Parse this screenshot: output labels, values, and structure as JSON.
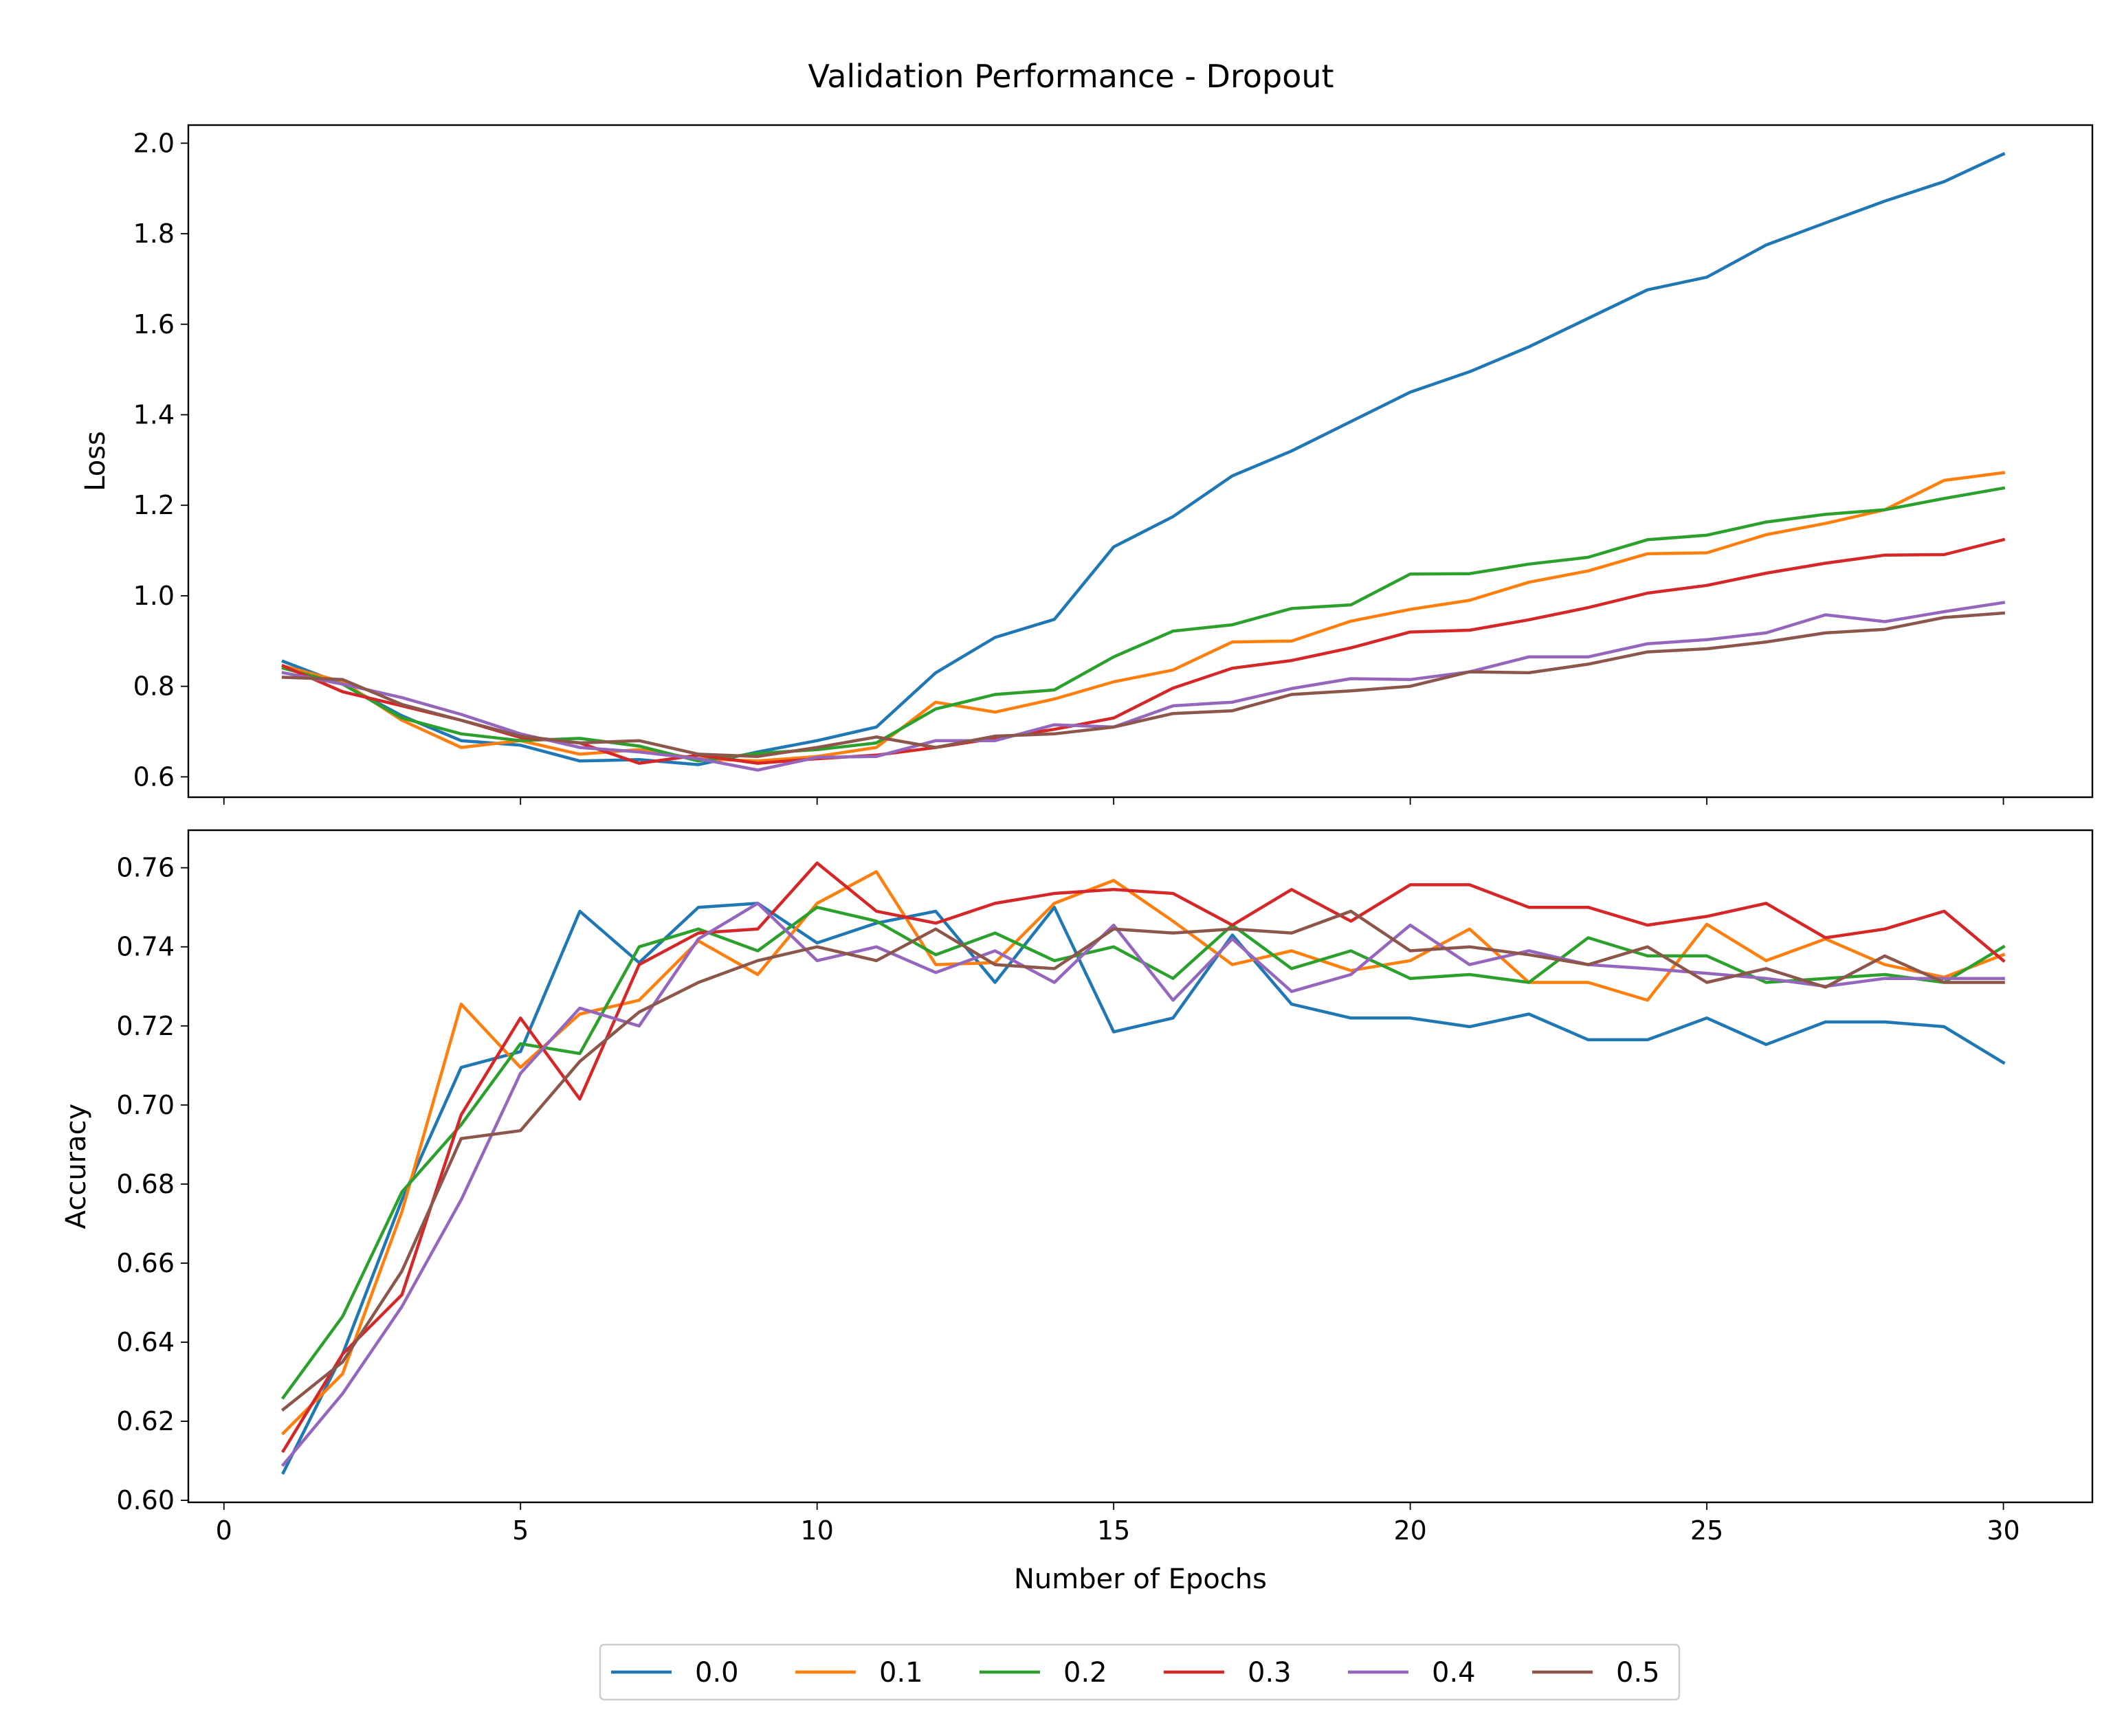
{
  "figure_title": "Validation Performance - Dropout",
  "chart_data": [
    {
      "type": "line",
      "ylabel": "Loss",
      "xlabel": "",
      "xlim": [
        -0.6,
        31.5
      ],
      "ylim": [
        0.555,
        2.04
      ],
      "xticks": [
        0,
        5,
        10,
        15,
        20,
        25,
        30
      ],
      "show_xtick_labels": false,
      "yticks": [
        0.6,
        0.8,
        1.0,
        1.2,
        1.4,
        1.6,
        1.8,
        2.0
      ],
      "ytick_labels": [
        "0.6",
        "0.8",
        "1.0",
        "1.2",
        "1.4",
        "1.6",
        "1.8",
        "2.0"
      ],
      "x": [
        1,
        2,
        3,
        4,
        5,
        6,
        7,
        8,
        9,
        10,
        11,
        12,
        13,
        14,
        15,
        16,
        17,
        18,
        19,
        20,
        21,
        22,
        23,
        24,
        25,
        26,
        27,
        28,
        29,
        30
      ],
      "series": [
        {
          "name": "0.0",
          "color": "#1f77b4",
          "values": [
            0.855,
            0.805,
            0.735,
            0.68,
            0.67,
            0.635,
            0.638,
            0.627,
            0.655,
            0.68,
            0.71,
            0.83,
            0.908,
            0.948,
            1.108,
            1.175,
            1.265,
            1.32,
            1.385,
            1.45,
            1.495,
            1.55,
            1.613,
            1.676,
            1.704,
            1.775,
            1.824,
            1.872,
            1.915,
            1.976
          ]
        },
        {
          "name": "0.1",
          "color": "#ff7f0e",
          "values": [
            0.845,
            0.81,
            0.725,
            0.665,
            0.68,
            0.65,
            0.66,
            0.64,
            0.635,
            0.645,
            0.665,
            0.765,
            0.743,
            0.772,
            0.81,
            0.836,
            0.898,
            0.9,
            0.944,
            0.97,
            0.99,
            1.03,
            1.055,
            1.093,
            1.095,
            1.135,
            1.16,
            1.19,
            1.255,
            1.272
          ]
        },
        {
          "name": "0.2",
          "color": "#2ca02c",
          "values": [
            0.84,
            0.805,
            0.73,
            0.695,
            0.68,
            0.685,
            0.668,
            0.635,
            0.652,
            0.66,
            0.675,
            0.75,
            0.782,
            0.792,
            0.865,
            0.922,
            0.936,
            0.972,
            0.98,
            1.048,
            1.049,
            1.07,
            1.085,
            1.124,
            1.134,
            1.163,
            1.18,
            1.19,
            1.215,
            1.238
          ]
        },
        {
          "name": "0.3",
          "color": "#d62728",
          "values": [
            0.845,
            0.788,
            0.757,
            0.725,
            0.687,
            0.675,
            0.63,
            0.648,
            0.63,
            0.64,
            0.648,
            0.665,
            0.685,
            0.705,
            0.73,
            0.796,
            0.84,
            0.857,
            0.885,
            0.92,
            0.924,
            0.947,
            0.974,
            1.006,
            1.023,
            1.05,
            1.072,
            1.09,
            1.091,
            1.124
          ]
        },
        {
          "name": "0.4",
          "color": "#9467bd",
          "values": [
            0.83,
            0.805,
            0.775,
            0.738,
            0.695,
            0.665,
            0.655,
            0.64,
            0.615,
            0.643,
            0.645,
            0.68,
            0.68,
            0.715,
            0.71,
            0.757,
            0.765,
            0.795,
            0.817,
            0.815,
            0.832,
            0.865,
            0.865,
            0.894,
            0.903,
            0.918,
            0.958,
            0.943,
            0.965,
            0.985
          ]
        },
        {
          "name": "0.5",
          "color": "#8c564b",
          "values": [
            0.82,
            0.815,
            0.76,
            0.725,
            0.69,
            0.675,
            0.68,
            0.65,
            0.645,
            0.665,
            0.688,
            0.665,
            0.69,
            0.695,
            0.71,
            0.74,
            0.746,
            0.782,
            0.79,
            0.8,
            0.832,
            0.83,
            0.849,
            0.876,
            0.883,
            0.898,
            0.918,
            0.926,
            0.952,
            0.962
          ]
        }
      ]
    },
    {
      "type": "line",
      "ylabel": "Accuracy",
      "xlabel": "Number of Epochs",
      "xlim": [
        -0.6,
        31.5
      ],
      "ylim": [
        0.5995,
        0.7695
      ],
      "xticks": [
        0,
        5,
        10,
        15,
        20,
        25,
        30
      ],
      "xtick_labels": [
        "0",
        "5",
        "10",
        "15",
        "20",
        "25",
        "30"
      ],
      "show_xtick_labels": true,
      "yticks": [
        0.6,
        0.62,
        0.64,
        0.66,
        0.68,
        0.7,
        0.72,
        0.74,
        0.76
      ],
      "ytick_labels": [
        "0.60",
        "0.62",
        "0.64",
        "0.66",
        "0.68",
        "0.70",
        "0.72",
        "0.74",
        "0.76"
      ],
      "x": [
        1,
        2,
        3,
        4,
        5,
        6,
        7,
        8,
        9,
        10,
        11,
        12,
        13,
        14,
        15,
        16,
        17,
        18,
        19,
        20,
        21,
        22,
        23,
        24,
        25,
        26,
        27,
        28,
        29,
        30
      ],
      "series": [
        {
          "name": "0.0",
          "color": "#1f77b4",
          "values": [
            0.607,
            0.637,
            0.676,
            0.7095,
            0.7135,
            0.749,
            0.736,
            0.75,
            0.751,
            0.741,
            0.746,
            0.749,
            0.731,
            0.75,
            0.7185,
            0.722,
            0.743,
            0.7255,
            0.722,
            0.722,
            0.7198,
            0.723,
            0.7165,
            0.7165,
            0.722,
            0.7153,
            0.721,
            0.721,
            0.7198,
            0.7107
          ]
        },
        {
          "name": "0.1",
          "color": "#ff7f0e",
          "values": [
            0.617,
            0.632,
            0.673,
            0.7255,
            0.7095,
            0.723,
            0.7265,
            0.7415,
            0.733,
            0.751,
            0.759,
            0.7355,
            0.736,
            0.751,
            0.7568,
            0.7465,
            0.7355,
            0.739,
            0.734,
            0.7365,
            0.7445,
            0.731,
            0.731,
            0.7265,
            0.7457,
            0.7365,
            0.742,
            0.7355,
            0.7323,
            0.738
          ]
        },
        {
          "name": "0.2",
          "color": "#2ca02c",
          "values": [
            0.626,
            0.6465,
            0.678,
            0.695,
            0.7155,
            0.713,
            0.74,
            0.7445,
            0.739,
            0.75,
            0.7465,
            0.738,
            0.7435,
            0.7365,
            0.74,
            0.732,
            0.7455,
            0.7345,
            0.739,
            0.732,
            0.733,
            0.731,
            0.7423,
            0.7377,
            0.7377,
            0.731,
            0.732,
            0.733,
            0.731,
            0.74
          ]
        },
        {
          "name": "0.3",
          "color": "#d62728",
          "values": [
            0.6125,
            0.637,
            0.652,
            0.6975,
            0.722,
            0.7015,
            0.7355,
            0.7435,
            0.7445,
            0.7612,
            0.749,
            0.746,
            0.751,
            0.7535,
            0.7545,
            0.7535,
            0.7455,
            0.7545,
            0.7465,
            0.7557,
            0.7557,
            0.75,
            0.75,
            0.7455,
            0.7477,
            0.751,
            0.7423,
            0.7445,
            0.749,
            0.7365
          ]
        },
        {
          "name": "0.4",
          "color": "#9467bd",
          "values": [
            0.609,
            0.627,
            0.649,
            0.676,
            0.708,
            0.7245,
            0.72,
            0.742,
            0.751,
            0.7365,
            0.74,
            0.7335,
            0.739,
            0.731,
            0.7455,
            0.7265,
            0.742,
            0.7287,
            0.733,
            0.7455,
            0.7355,
            0.739,
            0.7355,
            0.7345,
            0.7333,
            0.732,
            0.73,
            0.732,
            0.732,
            0.732
          ]
        },
        {
          "name": "0.5",
          "color": "#8c564b",
          "values": [
            0.623,
            0.635,
            0.658,
            0.6915,
            0.6935,
            0.711,
            0.7235,
            0.731,
            0.7365,
            0.74,
            0.7365,
            0.7445,
            0.7355,
            0.7345,
            0.7445,
            0.7435,
            0.7445,
            0.7435,
            0.749,
            0.739,
            0.74,
            0.738,
            0.7355,
            0.74,
            0.731,
            0.7345,
            0.7298,
            0.7377,
            0.731,
            0.731
          ]
        }
      ]
    }
  ]
}
